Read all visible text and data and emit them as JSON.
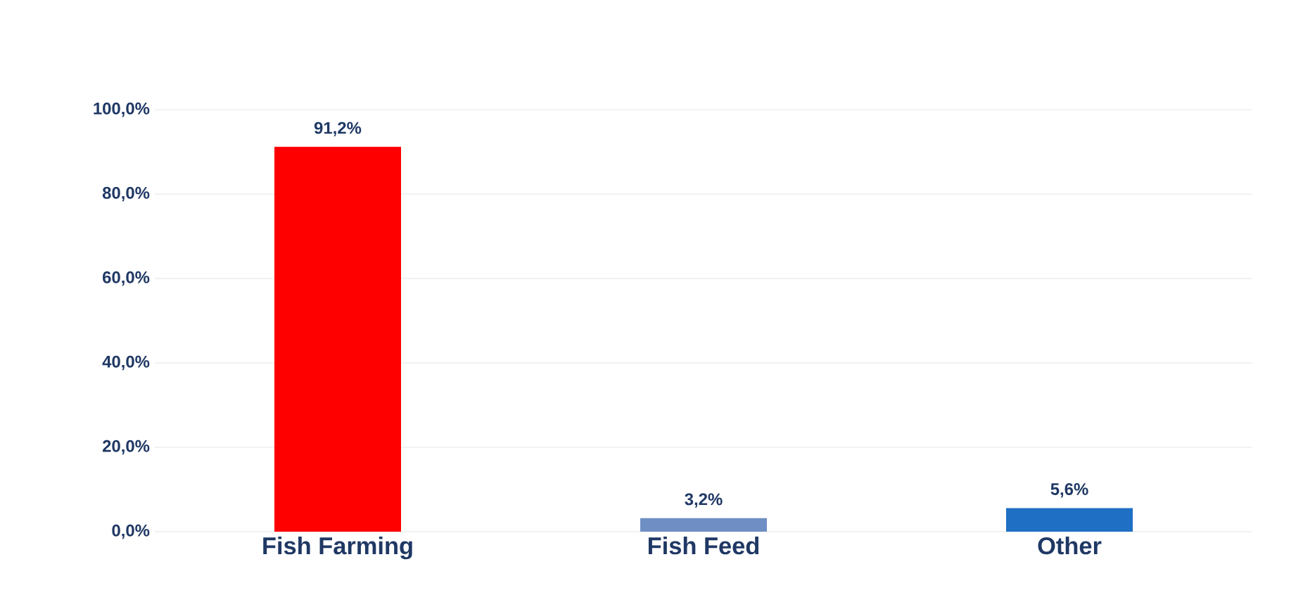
{
  "chart_data": {
    "type": "bar",
    "categories": [
      "Fish Farming",
      "Fish Feed",
      "Other"
    ],
    "values": [
      91.2,
      3.2,
      5.6
    ],
    "colors": [
      "#ff0000",
      "#6f8fc4",
      "#1f6fc4"
    ],
    "value_labels": [
      "91,2%",
      "3,2%",
      "5,6%"
    ],
    "ylim": [
      0,
      100
    ],
    "yticks": [
      {
        "value": 0,
        "label": "0,0%"
      },
      {
        "value": 20,
        "label": "20,0%"
      },
      {
        "value": 40,
        "label": "40,0%"
      },
      {
        "value": 60,
        "label": "60,0%"
      },
      {
        "value": 80,
        "label": "80,0%"
      },
      {
        "value": 100,
        "label": "100,0%"
      }
    ],
    "grid": "y"
  }
}
